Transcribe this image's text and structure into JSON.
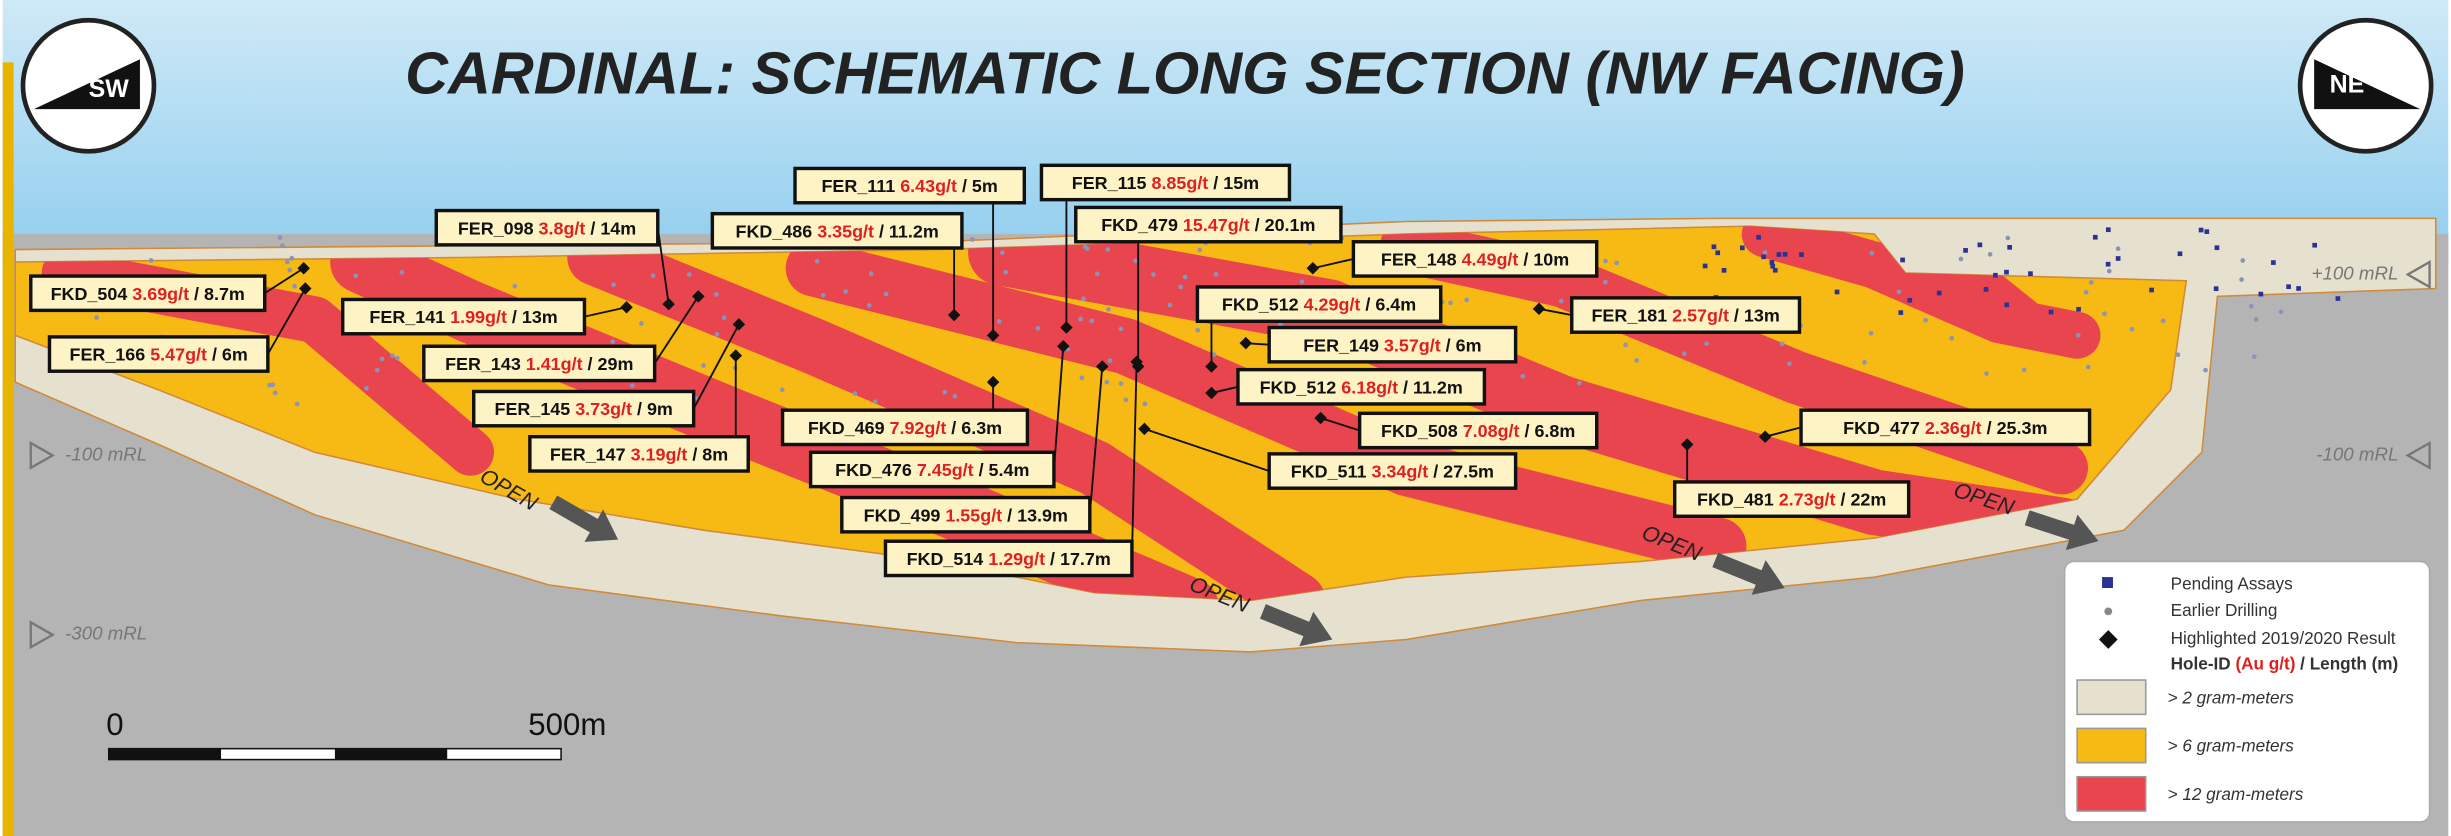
{
  "header": {
    "title": "CARDINAL: SCHEMATIC LONG SECTION (NW FACING)"
  },
  "compass": {
    "left": "SW",
    "right": "NE"
  },
  "separator": "/",
  "holes": [
    {
      "id": "FKD_504",
      "grade": "3.69g/t",
      "length": "8.7m"
    },
    {
      "id": "FER_098",
      "grade": "3.8g/t",
      "length": "14m"
    },
    {
      "id": "FKD_486",
      "grade": "3.35g/t",
      "length": "11.2m"
    },
    {
      "id": "FER_111",
      "grade": "6.43g/t",
      "length": "5m"
    },
    {
      "id": "FER_115",
      "grade": "8.85g/t",
      "length": "15m"
    },
    {
      "id": "FKD_479",
      "grade": "15.47g/t",
      "length": "20.1m"
    },
    {
      "id": "FER_148",
      "grade": "4.49g/t",
      "length": "10m"
    },
    {
      "id": "FER_141",
      "grade": "1.99g/t",
      "length": "13m"
    },
    {
      "id": "FKD_512",
      "grade": "4.29g/t",
      "length": "6.4m"
    },
    {
      "id": "FER_181",
      "grade": "2.57g/t",
      "length": "13m"
    },
    {
      "id": "FER_166",
      "grade": "5.47g/t",
      "length": "6m"
    },
    {
      "id": "FER_143",
      "grade": "1.41g/t",
      "length": "29m"
    },
    {
      "id": "FER_149",
      "grade": "3.57g/t",
      "length": "6m"
    },
    {
      "id": "FKD_512",
      "grade": "6.18g/t",
      "length": "11.2m"
    },
    {
      "id": "FER_145",
      "grade": "3.73g/t",
      "length": "9m"
    },
    {
      "id": "FKD_469",
      "grade": "7.92g/t",
      "length": "6.3m"
    },
    {
      "id": "FKD_508",
      "grade": "7.08g/t",
      "length": "6.8m"
    },
    {
      "id": "FKD_477",
      "grade": "2.36g/t",
      "length": "25.3m"
    },
    {
      "id": "FER_147",
      "grade": "3.19g/t",
      "length": "8m"
    },
    {
      "id": "FKD_476",
      "grade": "7.45g/t",
      "length": "5.4m"
    },
    {
      "id": "FKD_511",
      "grade": "3.34g/t",
      "length": "27.5m"
    },
    {
      "id": "FKD_481",
      "grade": "2.73g/t",
      "length": "22m"
    },
    {
      "id": "FKD_499",
      "grade": "1.55g/t",
      "length": "13.9m"
    },
    {
      "id": "FKD_514",
      "grade": "1.29g/t",
      "length": "17.7m"
    }
  ],
  "elevations": [
    "+100 mRL",
    "-100 mRL",
    "-100 mRL",
    "-300 mRL"
  ],
  "open_labels": [
    "OPEN",
    "OPEN",
    "OPEN",
    "OPEN"
  ],
  "scale": {
    "start": "0",
    "end": "500m"
  },
  "legend": {
    "items": [
      "Pending Assays",
      "Earlier Drilling",
      "Highlighted 2019/2020 Result"
    ],
    "key": {
      "hole_id": "Hole-ID",
      "grade": "(Au g/t)",
      "length": "Length (m)"
    },
    "zones": [
      "> 2 gram-meters",
      "> 6 gram-meters",
      "> 12 gram-meters"
    ]
  }
}
